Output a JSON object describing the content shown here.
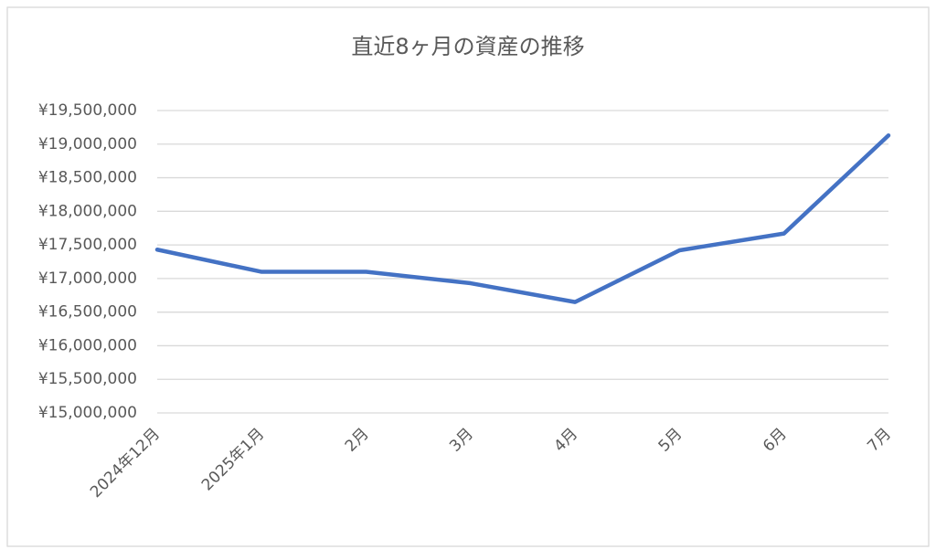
{
  "chart_data": {
    "type": "line",
    "title": "直近8ヶ月の資産の推移",
    "categories": [
      "2024年12月",
      "2025年1月",
      "2月",
      "3月",
      "4月",
      "5月",
      "6月",
      "7月"
    ],
    "series": [
      {
        "name": "資産",
        "color": "#4472c4",
        "values": [
          17430000,
          17100000,
          17100000,
          16930000,
          16650000,
          17420000,
          17670000,
          19130000
        ]
      }
    ],
    "ylim": [
      15000000,
      19500000
    ],
    "yticks": [
      {
        "value": 15000000,
        "label": "¥15,000,000"
      },
      {
        "value": 15500000,
        "label": "¥15,500,000"
      },
      {
        "value": 16000000,
        "label": "¥16,000,000"
      },
      {
        "value": 16500000,
        "label": "¥16,500,000"
      },
      {
        "value": 17000000,
        "label": "¥17,000,000"
      },
      {
        "value": 17500000,
        "label": "¥17,500,000"
      },
      {
        "value": 18000000,
        "label": "¥18,000,000"
      },
      {
        "value": 18500000,
        "label": "¥18,500,000"
      },
      {
        "value": 19000000,
        "label": "¥19,000,000"
      },
      {
        "value": 19500000,
        "label": "¥19,500,000"
      }
    ],
    "grid": true
  }
}
